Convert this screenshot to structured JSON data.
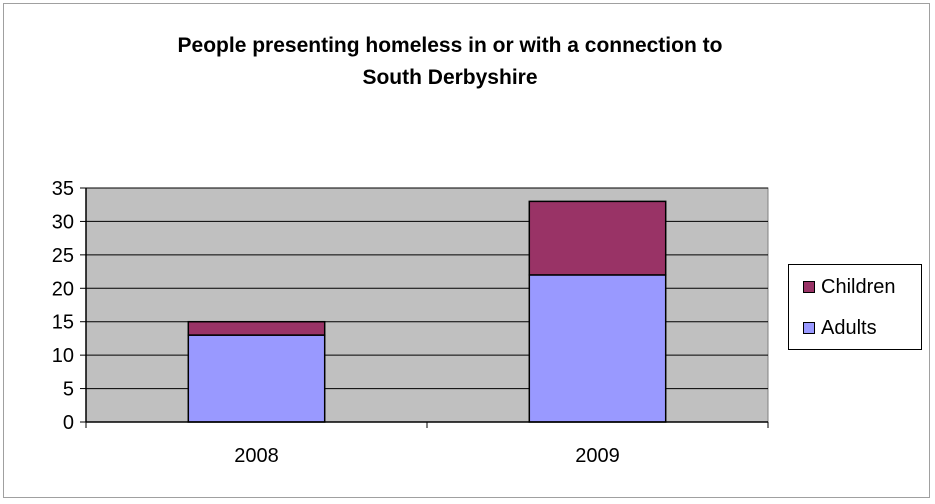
{
  "chart_data": {
    "type": "bar",
    "stacked": true,
    "title": [
      "People presenting homeless in or with a connection to",
      "South Derbyshire"
    ],
    "categories": [
      "2008",
      "2009"
    ],
    "series": [
      {
        "name": "Adults",
        "values": [
          13,
          22
        ],
        "color": "#9999ff"
      },
      {
        "name": "Children",
        "values": [
          2,
          11
        ],
        "color": "#993366"
      }
    ],
    "ylim": [
      0,
      35
    ],
    "yticks": [
      0,
      5,
      10,
      15,
      20,
      25,
      30,
      35
    ],
    "grid": true,
    "plot_background": "#c0c0c0",
    "legend_position": "right",
    "legend": [
      "Children",
      "Adults"
    ]
  }
}
